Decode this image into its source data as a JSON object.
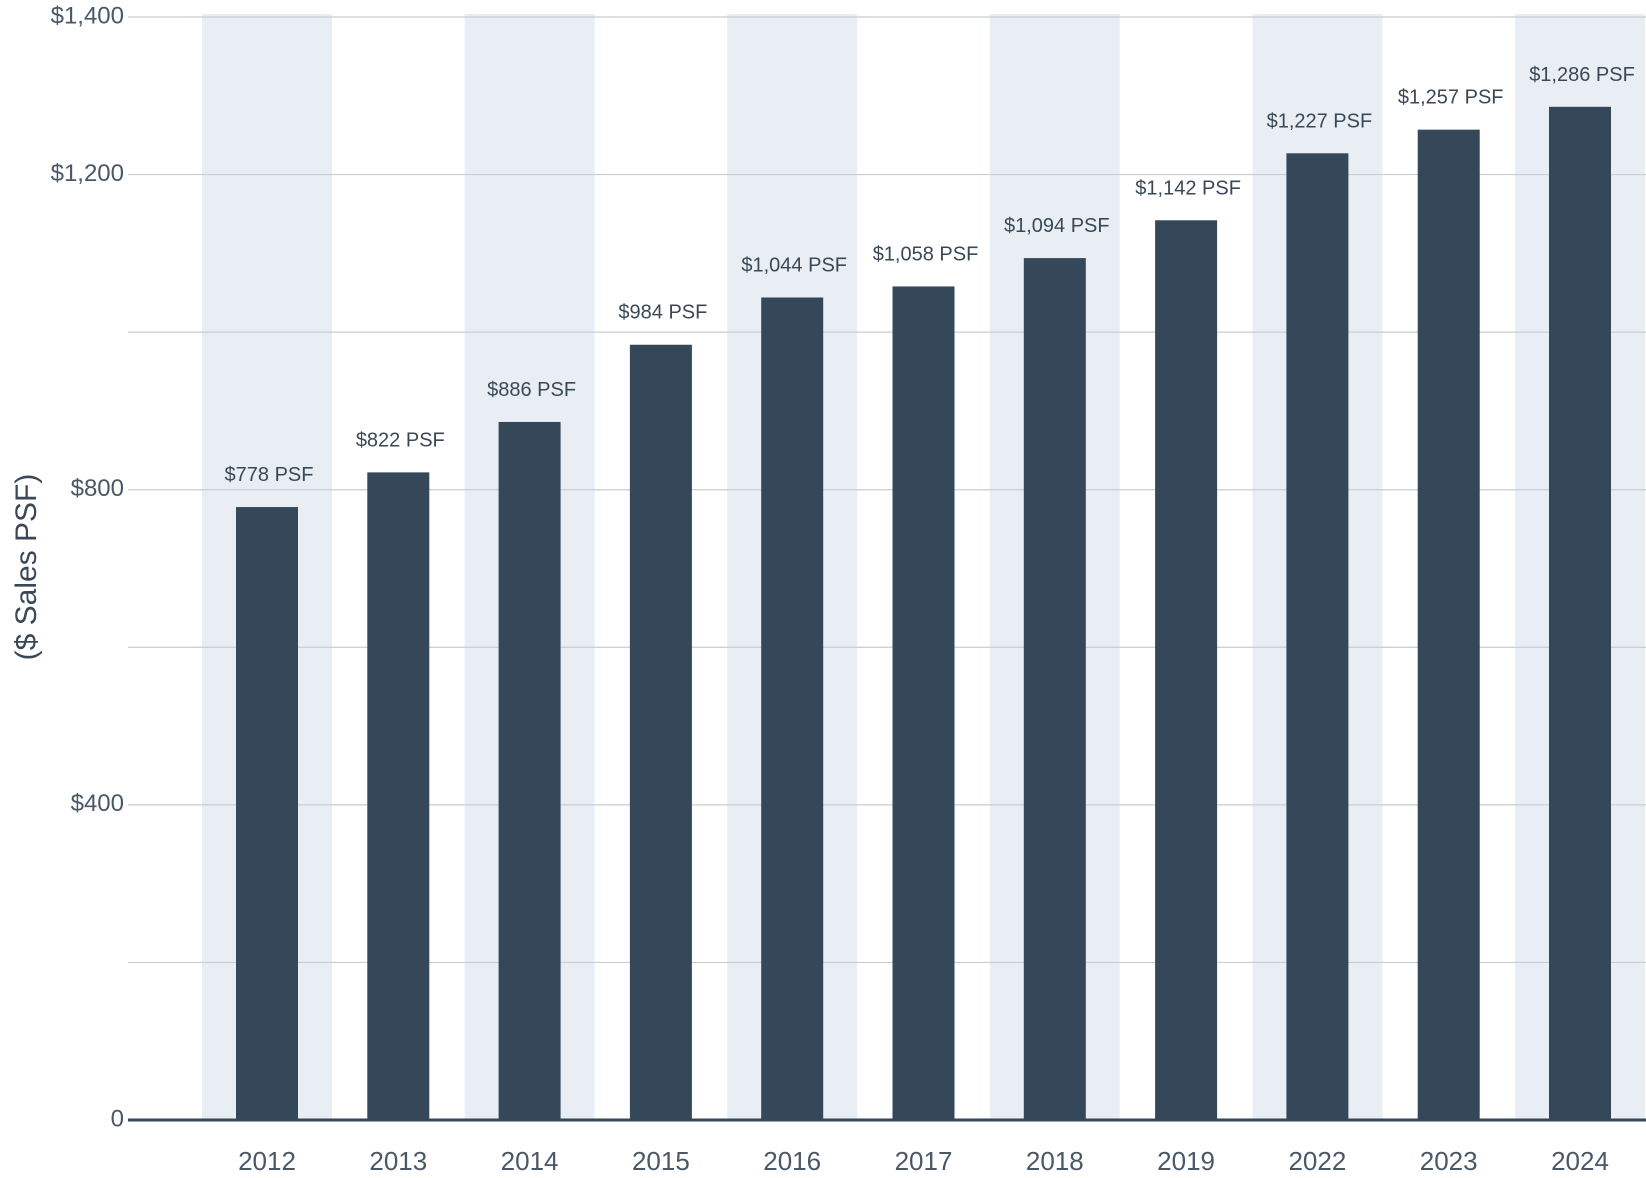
{
  "chart_data": {
    "type": "bar",
    "title": "",
    "xlabel": "",
    "ylabel": "($ Sales PSF)",
    "categories": [
      "2012",
      "2013",
      "2014",
      "2015",
      "2016",
      "2017",
      "2018",
      "2019",
      "2022",
      "2023",
      "2024"
    ],
    "values": [
      778,
      822,
      886,
      984,
      1044,
      1058,
      1094,
      1142,
      1227,
      1257,
      1286
    ],
    "data_labels": [
      "$778 PSF",
      "$822 PSF",
      "$886 PSF",
      "$984 PSF",
      "$1,044 PSF",
      "$1,058 PSF",
      "$1,094 PSF",
      "$1,142 PSF",
      "$1,227 PSF",
      "$1,257 PSF",
      "$1,286 PSF"
    ],
    "ylim": [
      0,
      1400
    ],
    "y_ticks": [
      {
        "value": 0,
        "label": "0"
      },
      {
        "value": 400,
        "label": "$400"
      },
      {
        "value": 800,
        "label": "$800"
      },
      {
        "value": 1200,
        "label": "$1,200"
      },
      {
        "value": 1400,
        "label": "$1,400"
      }
    ],
    "gridlines": [
      200,
      400,
      600,
      800,
      1000,
      1200,
      1400
    ],
    "grid": true,
    "legend": "none",
    "colors": {
      "bar": "#344859",
      "band": "#e9eef5",
      "grid": "#c8cdd2",
      "axis": "#344859"
    }
  }
}
